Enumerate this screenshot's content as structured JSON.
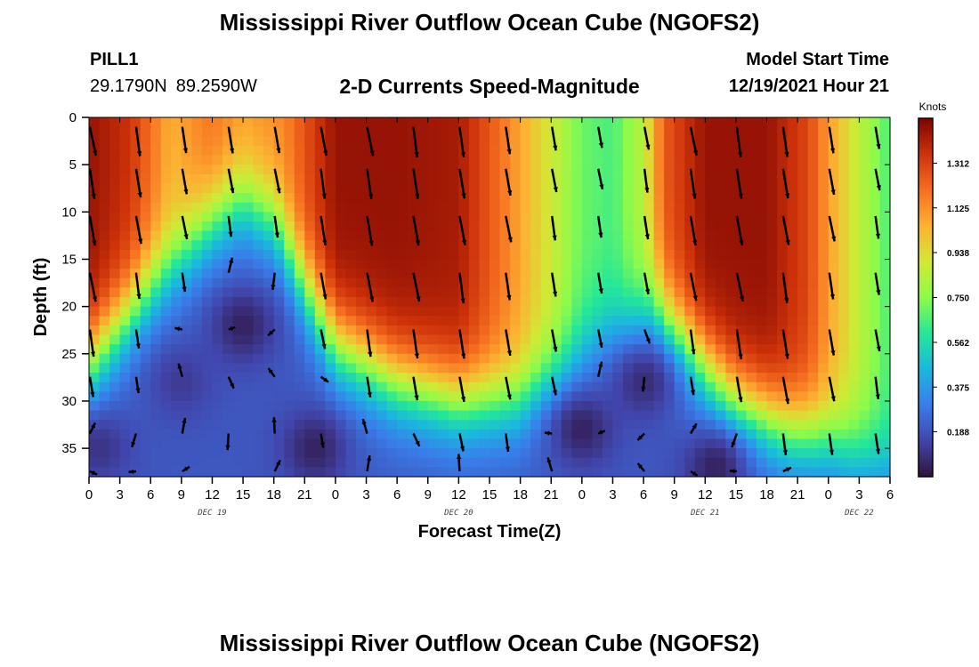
{
  "page": {
    "title": "Mississippi River Outflow Ocean Cube (NGOFS2)",
    "station_id": "PILL1",
    "lat": "29.1790N",
    "lon": "89.2590W",
    "subtitle": "2-D Currents Speed-Magnitude",
    "model_start_label": "Model Start Time",
    "model_start_value": "12/19/2021 Hour 21",
    "bottom_title": "Mississippi River Outflow Ocean Cube (NGOFS2)"
  },
  "chart_data": {
    "type": "heatmap",
    "title": "2-D Currents Speed-Magnitude",
    "xlabel": "Forecast Time(Z)",
    "ylabel": "Depth (ft)",
    "x_range_hours": [
      0,
      78
    ],
    "x_tick_labels": [
      "0",
      "3",
      "6",
      "9",
      "12",
      "15",
      "18",
      "21",
      "0",
      "3",
      "6",
      "9",
      "12",
      "15",
      "18",
      "21",
      "0",
      "3",
      "6",
      "9",
      "12",
      "15",
      "18",
      "21",
      "0",
      "3",
      "6"
    ],
    "day_labels": [
      {
        "label": "DEC 19",
        "hour": 12
      },
      {
        "label": "DEC 20",
        "hour": 36
      },
      {
        "label": "DEC 21",
        "hour": 60
      },
      {
        "label": "DEC 22",
        "hour": 75
      }
    ],
    "y_range_ft": [
      0,
      38
    ],
    "y_reversed": true,
    "y_ticks": [
      0,
      5,
      10,
      15,
      20,
      25,
      30,
      35
    ],
    "colorbar": {
      "unit": "Knots",
      "range": [
        0,
        1.5
      ],
      "tick_labels": [
        "1.312",
        "1.125",
        "0.938",
        "0.750",
        "0.562",
        "0.375",
        "0.188"
      ],
      "tick_values": [
        1.312,
        1.125,
        0.938,
        0.75,
        0.562,
        0.375,
        0.188
      ]
    },
    "surface_speed_knots_by_hour": [
      {
        "hour": 0,
        "speed": 1.45
      },
      {
        "hour": 4,
        "speed": 1.35
      },
      {
        "hour": 8,
        "speed": 1.05
      },
      {
        "hour": 12,
        "speed": 1.2
      },
      {
        "hour": 15,
        "speed": 1.1
      },
      {
        "hour": 19,
        "speed": 1.15
      },
      {
        "hour": 24,
        "speed": 1.45
      },
      {
        "hour": 30,
        "speed": 1.45
      },
      {
        "hour": 36,
        "speed": 1.42
      },
      {
        "hour": 40,
        "speed": 1.2
      },
      {
        "hour": 44,
        "speed": 0.95
      },
      {
        "hour": 48,
        "speed": 0.7
      },
      {
        "hour": 51,
        "speed": 0.65
      },
      {
        "hour": 54,
        "speed": 0.85
      },
      {
        "hour": 56,
        "speed": 1.25
      },
      {
        "hour": 60,
        "speed": 1.45
      },
      {
        "hour": 66,
        "speed": 1.45
      },
      {
        "hour": 70,
        "speed": 1.3
      },
      {
        "hour": 72,
        "speed": 1.1
      },
      {
        "hour": 75,
        "speed": 0.85
      },
      {
        "hour": 78,
        "speed": 0.65
      }
    ],
    "strong_layer_depth_ft_by_hour": [
      {
        "hour": 0,
        "depth": 26
      },
      {
        "hour": 6,
        "depth": 18
      },
      {
        "hour": 12,
        "depth": 11
      },
      {
        "hour": 15,
        "depth": 9
      },
      {
        "hour": 18,
        "depth": 11
      },
      {
        "hour": 21,
        "depth": 18
      },
      {
        "hour": 24,
        "depth": 24
      },
      {
        "hour": 30,
        "depth": 28
      },
      {
        "hour": 36,
        "depth": 30
      },
      {
        "hour": 42,
        "depth": 30
      },
      {
        "hour": 46,
        "depth": 27
      },
      {
        "hour": 49,
        "depth": 24
      },
      {
        "hour": 52,
        "depth": 22
      },
      {
        "hour": 55,
        "depth": 20
      },
      {
        "hour": 58,
        "depth": 24
      },
      {
        "hour": 63,
        "depth": 30
      },
      {
        "hour": 68,
        "depth": 33
      },
      {
        "hour": 72,
        "depth": 34
      },
      {
        "hour": 75,
        "depth": 36
      },
      {
        "hour": 78,
        "depth": 37
      }
    ],
    "low_speed_pockets": [
      {
        "hour": 15,
        "depth": 22,
        "speed": 0.05
      },
      {
        "hour": 9,
        "depth": 28,
        "speed": 0.12
      },
      {
        "hour": 22,
        "depth": 35,
        "speed": 0.05
      },
      {
        "hour": 1,
        "depth": 35,
        "speed": 0.1
      },
      {
        "hour": 48,
        "depth": 33,
        "speed": 0.05
      },
      {
        "hour": 54,
        "depth": 28,
        "speed": 0.08
      },
      {
        "hour": 61,
        "depth": 37,
        "speed": 0.05
      }
    ],
    "vectors": {
      "x_step_hours": 4.5,
      "depths_ft": [
        1,
        6,
        11,
        17,
        23,
        28,
        34,
        38
      ],
      "typical_direction": "south-southeast"
    },
    "grid": false
  }
}
